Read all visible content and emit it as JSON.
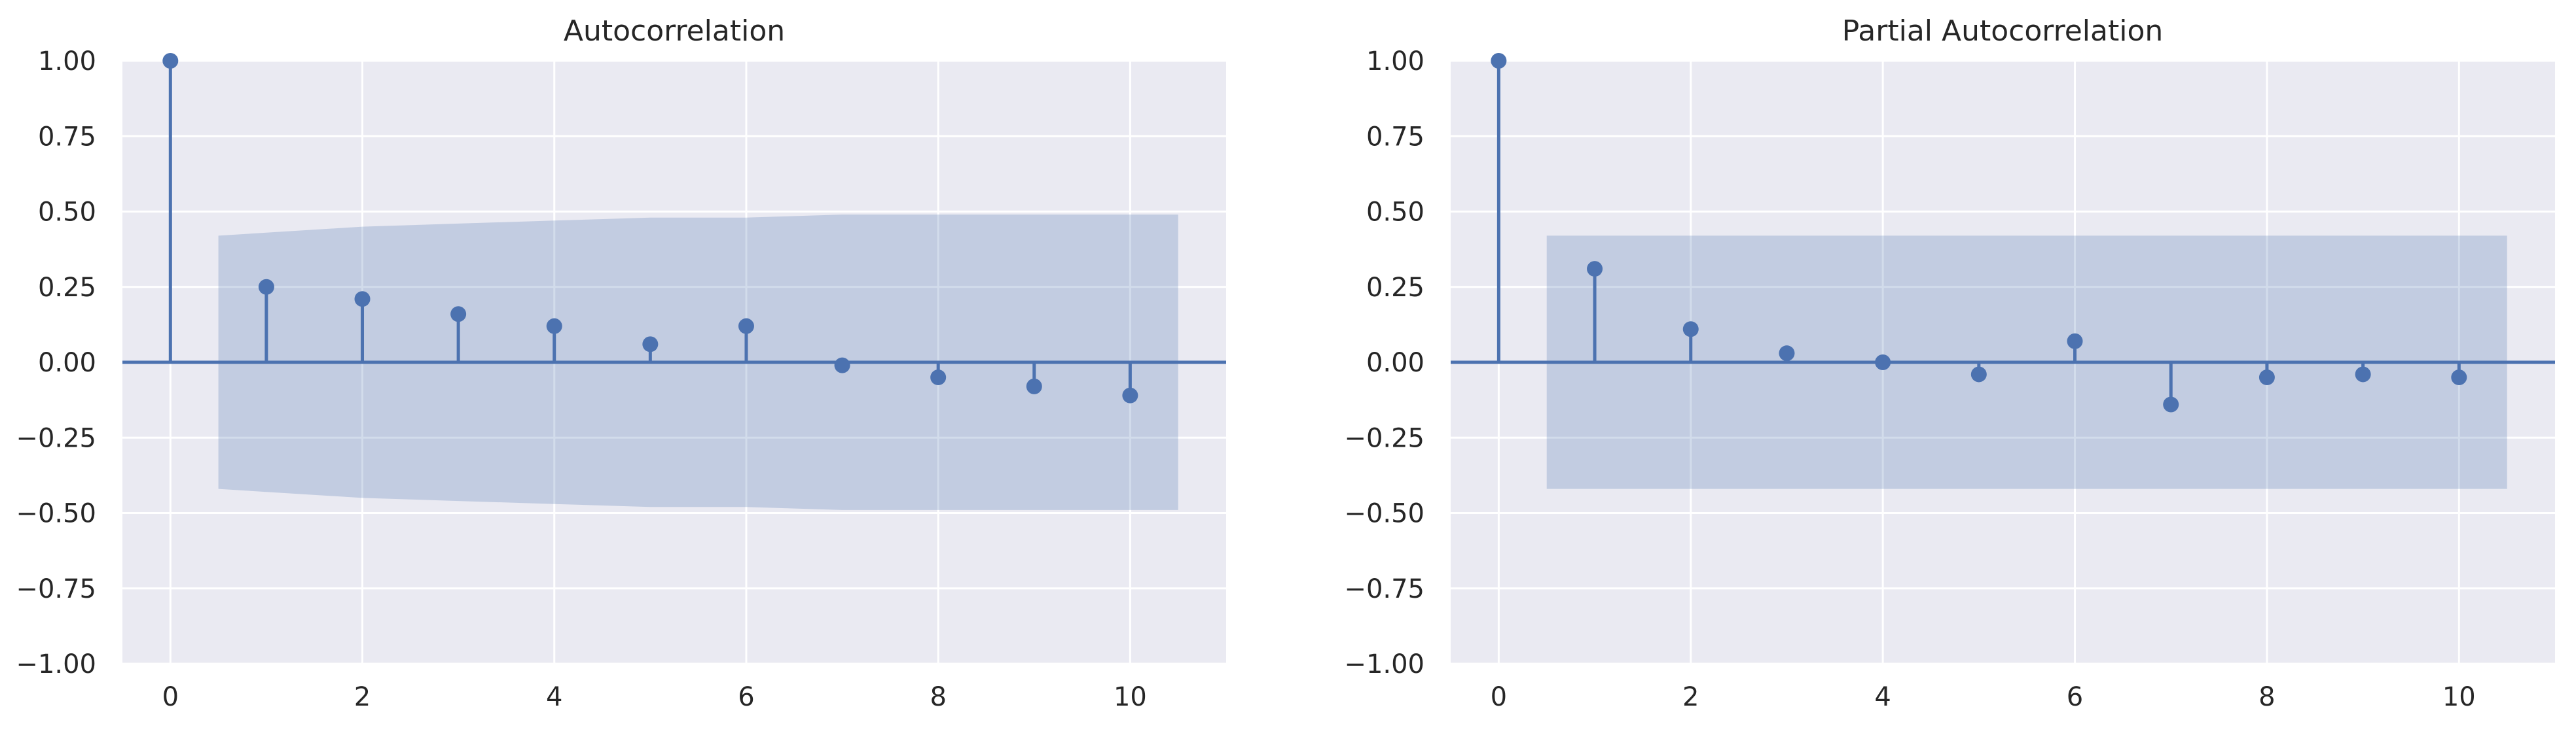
{
  "chart_data": [
    {
      "type": "stem",
      "title": "Autocorrelation",
      "xlabel": "",
      "ylabel": "",
      "xlim": [
        -0.5,
        11
      ],
      "ylim": [
        -1.0,
        1.0
      ],
      "x_ticks": [
        0,
        2,
        4,
        6,
        8,
        10
      ],
      "x_tick_labels": [
        "0",
        "2",
        "4",
        "6",
        "8",
        "10"
      ],
      "y_ticks": [
        1.0,
        0.75,
        0.5,
        0.25,
        0.0,
        -0.25,
        -0.5,
        -0.75,
        -1.0
      ],
      "y_tick_labels": [
        "1.00",
        "0.75",
        "0.50",
        "0.25",
        "0.00",
        "−0.25",
        "−0.50",
        "−0.75",
        "−1.00"
      ],
      "grid": true,
      "x": [
        0,
        1,
        2,
        3,
        4,
        5,
        6,
        7,
        8,
        9,
        10
      ],
      "values": [
        1.0,
        0.25,
        0.21,
        0.16,
        0.12,
        0.06,
        0.12,
        -0.01,
        -0.05,
        -0.08,
        -0.11
      ],
      "confidence_band": {
        "x": [
          0.5,
          1,
          2,
          3,
          4,
          5,
          6,
          7,
          8,
          9,
          10,
          10.5
        ],
        "upper": [
          0.42,
          0.43,
          0.45,
          0.46,
          0.47,
          0.48,
          0.48,
          0.49,
          0.49,
          0.49,
          0.49,
          0.49
        ],
        "lower": [
          -0.42,
          -0.43,
          -0.45,
          -0.46,
          -0.47,
          -0.48,
          -0.48,
          -0.49,
          -0.49,
          -0.49,
          -0.49,
          -0.49
        ]
      },
      "colors": {
        "stem": "#4c72b0",
        "band": "#4c72b0",
        "background": "#eaeaf2",
        "grid": "#ffffff"
      }
    },
    {
      "type": "stem",
      "title": "Partial Autocorrelation",
      "xlabel": "",
      "ylabel": "",
      "xlim": [
        -0.5,
        11
      ],
      "ylim": [
        -1.0,
        1.0
      ],
      "x_ticks": [
        0,
        2,
        4,
        6,
        8,
        10
      ],
      "x_tick_labels": [
        "0",
        "2",
        "4",
        "6",
        "8",
        "10"
      ],
      "y_ticks": [
        1.0,
        0.75,
        0.5,
        0.25,
        0.0,
        -0.25,
        -0.5,
        -0.75,
        -1.0
      ],
      "y_tick_labels": [
        "1.00",
        "0.75",
        "0.50",
        "0.25",
        "0.00",
        "−0.25",
        "−0.50",
        "−0.75",
        "−1.00"
      ],
      "grid": true,
      "x": [
        0,
        1,
        2,
        3,
        4,
        5,
        6,
        7,
        8,
        9,
        10
      ],
      "values": [
        1.0,
        0.31,
        0.11,
        0.03,
        0.0,
        -0.04,
        0.07,
        -0.14,
        -0.05,
        -0.04,
        -0.05
      ],
      "confidence_band": {
        "x": [
          0.5,
          10.5
        ],
        "upper": [
          0.42,
          0.42
        ],
        "lower": [
          -0.42,
          -0.42
        ]
      },
      "colors": {
        "stem": "#4c72b0",
        "band": "#4c72b0",
        "background": "#eaeaf2",
        "grid": "#ffffff"
      }
    }
  ]
}
